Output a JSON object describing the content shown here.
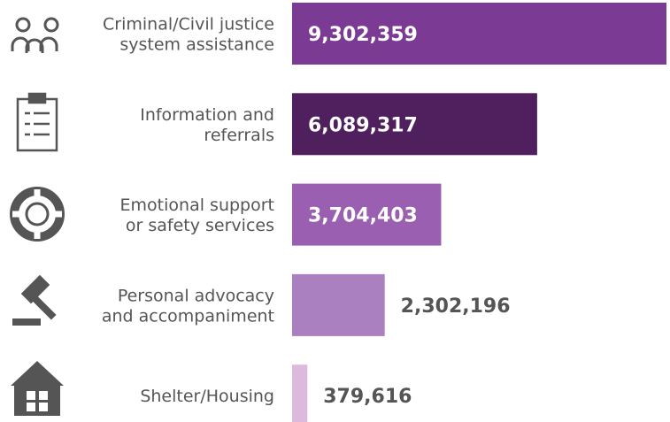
{
  "chart_data": {
    "type": "bar",
    "orientation": "horizontal",
    "categories": [
      "Criminal/Civil justice\nsystem assistance",
      "Information and\nreferrals",
      "Emotional support\nor safety services",
      "Personal advocacy\nand accompaniment",
      "Shelter/Housing"
    ],
    "values": [
      9302359,
      6089317,
      3704403,
      2302196,
      379616
    ],
    "value_labels": [
      "9,302,359",
      "6,089,317",
      "3,704,403",
      "2,302,196",
      "379,616"
    ],
    "colors": [
      "#7b3a93",
      "#4f1f5e",
      "#9a5fb0",
      "#ab80c1",
      "#dcb9dd"
    ]
  }
}
